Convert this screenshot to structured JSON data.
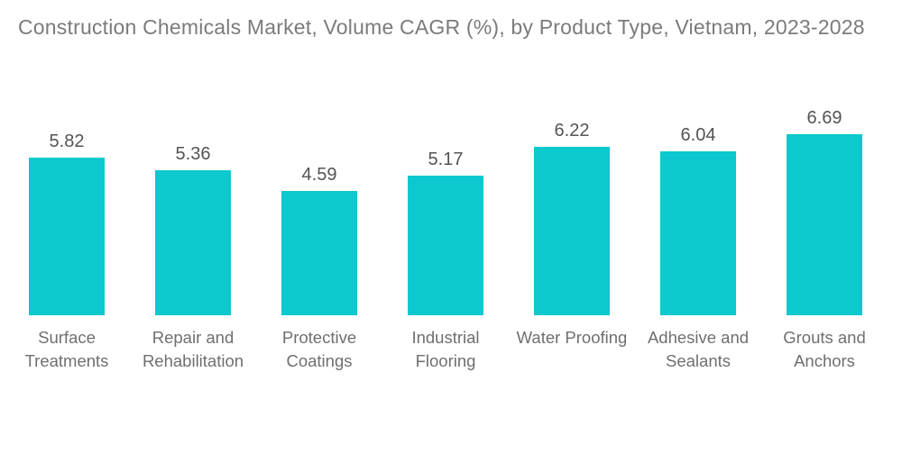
{
  "chart_data": {
    "type": "bar",
    "title": "Construction Chemicals Market, Volume CAGR (%), by Product Type, Vietnam, 2023-2028",
    "categories": [
      "Surface Treatments",
      "Repair and Rehabilitation",
      "Protective Coatings",
      "Industrial Flooring",
      "Water Proofing",
      "Adhesive and Sealants",
      "Grouts and Anchors"
    ],
    "values": [
      5.82,
      5.36,
      4.59,
      5.17,
      6.22,
      6.04,
      6.69
    ],
    "value_labels": [
      "5.82",
      "5.36",
      "4.59",
      "5.17",
      "6.22",
      "6.04",
      "6.69"
    ],
    "xlabel": "",
    "ylabel": "",
    "ylim": [
      0,
      7
    ],
    "grid": false,
    "legend": false,
    "axes_visible": false,
    "bar_color": "#0BC9CE",
    "title_color": "#7B7B7B",
    "value_label_color": "#545454",
    "category_label_color": "#6F6F6F",
    "background_color": "#FFFFFF"
  }
}
